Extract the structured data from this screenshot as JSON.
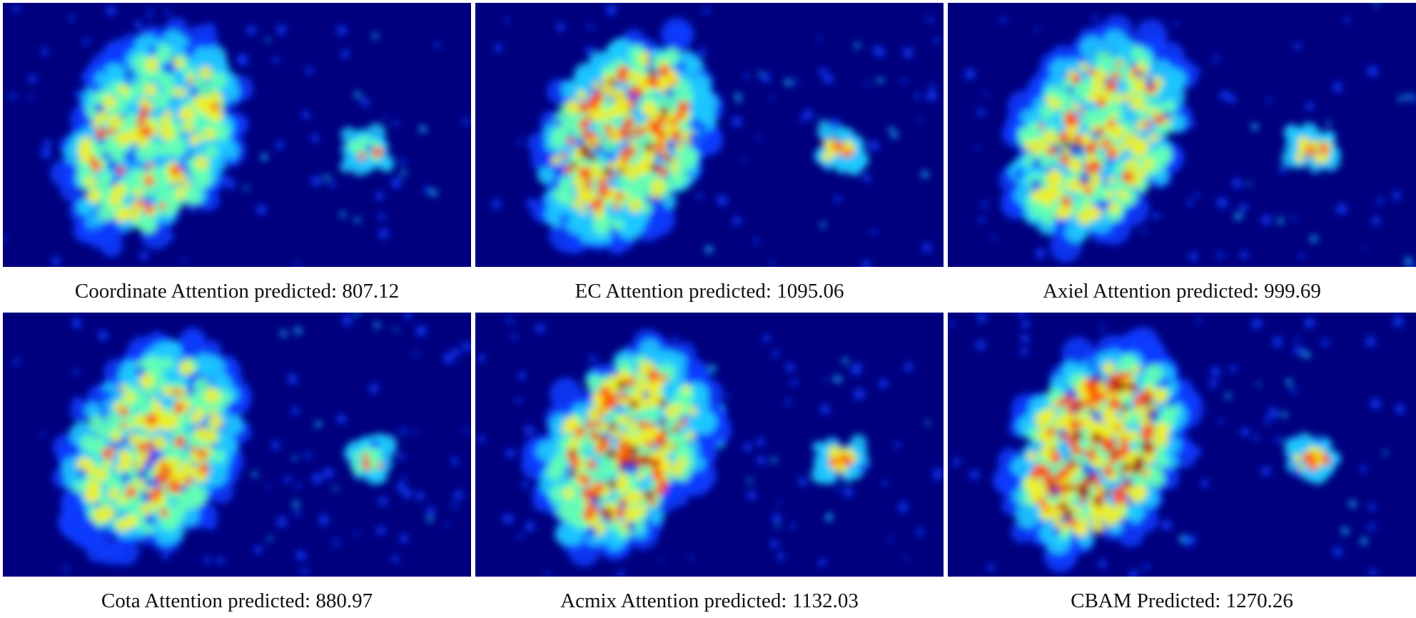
{
  "colors": {
    "background": "#00007f",
    "low": "#0a3cff",
    "mid_low": "#1ec8ff",
    "mid": "#64ffb4",
    "mid_high": "#f0f020",
    "high": "#ff4a00",
    "peak": "#9a0000"
  },
  "panels": [
    {
      "caption": "Coordinate Attention predicted: 807.12",
      "intensity": 0.42
    },
    {
      "caption": "EC Attention predicted: 1095.06",
      "intensity": 0.72
    },
    {
      "caption": "Axiel Attention predicted: 999.69",
      "intensity": 0.6
    },
    {
      "caption": "Cota Attention predicted: 880.97",
      "intensity": 0.5
    },
    {
      "caption": "Acmix Attention predicted: 1132.03",
      "intensity": 0.8
    },
    {
      "caption": "CBAM Predicted: 1270.26",
      "intensity": 0.95
    }
  ]
}
